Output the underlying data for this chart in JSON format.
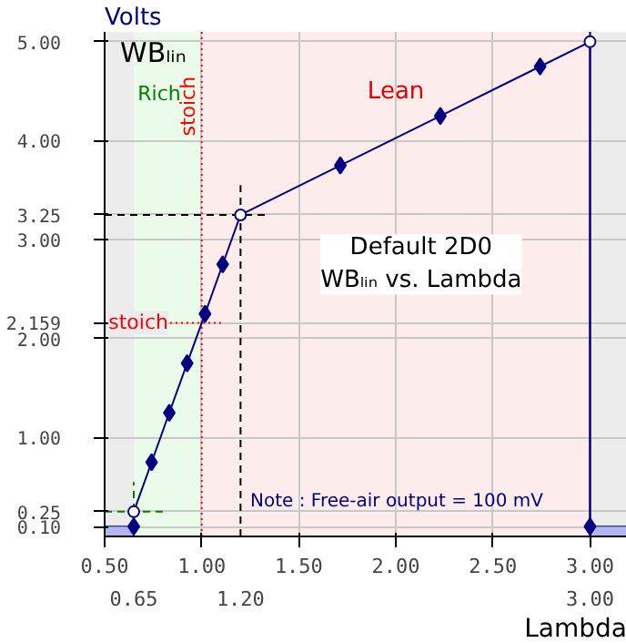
{
  "chart_data": {
    "type": "line",
    "title": "WBₗᵢₙ",
    "ylabel": "Volts",
    "xlabel": "Lambda",
    "xlim": [
      0.5,
      3.19
    ],
    "ylim": [
      0,
      5.1
    ],
    "xticks": [
      {
        "value": 0.5,
        "label": "0.50"
      },
      {
        "value": 1.0,
        "label": "1.00"
      },
      {
        "value": 1.5,
        "label": "1.50"
      },
      {
        "value": 2.0,
        "label": "2.00"
      },
      {
        "value": 2.5,
        "label": "2.50"
      },
      {
        "value": 3.0,
        "label": "3.00"
      }
    ],
    "yticks": [
      {
        "value": 0.1,
        "label": "0.10"
      },
      {
        "value": 0.25,
        "label": "0.25"
      },
      {
        "value": 1,
        "label": "1.00"
      },
      {
        "value": 2,
        "label": "2.00"
      },
      {
        "value": 2.159,
        "label": "2.159"
      },
      {
        "value": 3,
        "label": "3.00"
      },
      {
        "value": 3.25,
        "label": "3.25"
      },
      {
        "value": 4,
        "label": "4.00"
      },
      {
        "value": 5,
        "label": "5.00"
      }
    ],
    "grid": true,
    "series": [
      {
        "type": "line",
        "color": "#000080",
        "marker": "none",
        "x": [
          0.5,
          0.65,
          0.65,
          0.742,
          0.833,
          0.925,
          1.017,
          1.108,
          1.2,
          1.714,
          2.229,
          2.743,
          3.0,
          3.0,
          3.19
        ],
        "values": [
          0.1,
          0.1,
          0.25,
          0.75,
          1.25,
          1.75,
          2.25,
          2.75,
          3.25,
          3.75,
          4.25,
          4.75,
          5.0,
          0.1,
          0.1
        ]
      },
      {
        "type": "scatter",
        "color": "#000080",
        "marker": "diamond",
        "x": [
          0.65,
          0.742,
          0.833,
          0.925,
          1.017,
          1.108,
          1.714,
          2.229,
          2.743,
          3.0
        ],
        "values": [
          0.1,
          0.75,
          1.25,
          1.75,
          2.25,
          2.75,
          3.75,
          4.25,
          4.75,
          0.1
        ]
      },
      {
        "type": "scatter",
        "color": "#000080",
        "marker": "circle",
        "x": [
          0.65,
          1.2,
          3.0
        ],
        "values": [
          0.25,
          3.25,
          5.0
        ]
      },
      {
        "type": "area",
        "color": "#b4b4f0",
        "x": [
          0.5,
          0.65
        ],
        "values": [
          0.1,
          0.1
        ]
      },
      {
        "type": "area",
        "color": "#b4b4f0",
        "x": [
          3.0,
          3.19
        ],
        "values": [
          0.1,
          0.1
        ]
      }
    ],
    "bands": [
      {
        "axis": "x",
        "from": 0.5,
        "to": 0.65,
        "color": "#ececec"
      },
      {
        "axis": "x",
        "from": 0.65,
        "to": 1.0,
        "color": "#eafbea",
        "label": "Rich"
      },
      {
        "axis": "x",
        "from": 1.0,
        "to": 3.0,
        "color": "#fdecec",
        "label": "Lean"
      },
      {
        "axis": "x",
        "from": 3.0,
        "to": 3.19,
        "color": "#ececec"
      }
    ],
    "ref_lines": [
      {
        "axis": "x",
        "value": 1.0,
        "label": "stoich",
        "color": "#ff0000",
        "line_style": "dotted"
      },
      {
        "axis": "x",
        "value": 1.2,
        "label": "1.20",
        "color": "#000000",
        "line_style": "dashed"
      },
      {
        "axis": "x",
        "value": 0.65,
        "label": "0.65",
        "color": "#008000",
        "line_style": "dashed"
      },
      {
        "axis": "x",
        "value": 3.0,
        "label": "3.00",
        "color": "#000080",
        "line_style": "solid"
      },
      {
        "axis": "y",
        "value": 2.159,
        "label": "stoich",
        "color": "#ff0000",
        "line_style": "dotted"
      },
      {
        "axis": "y",
        "value": 3.25,
        "color": "#000000",
        "line_style": "dashed"
      },
      {
        "axis": "y",
        "value": 0.25,
        "color": "#008000",
        "line_style": "dashed"
      }
    ],
    "annotations": [
      "Default 2D0\nWBₗᵢₙ vs. Lambda",
      "Note : Free-air output = 100 mV"
    ]
  }
}
